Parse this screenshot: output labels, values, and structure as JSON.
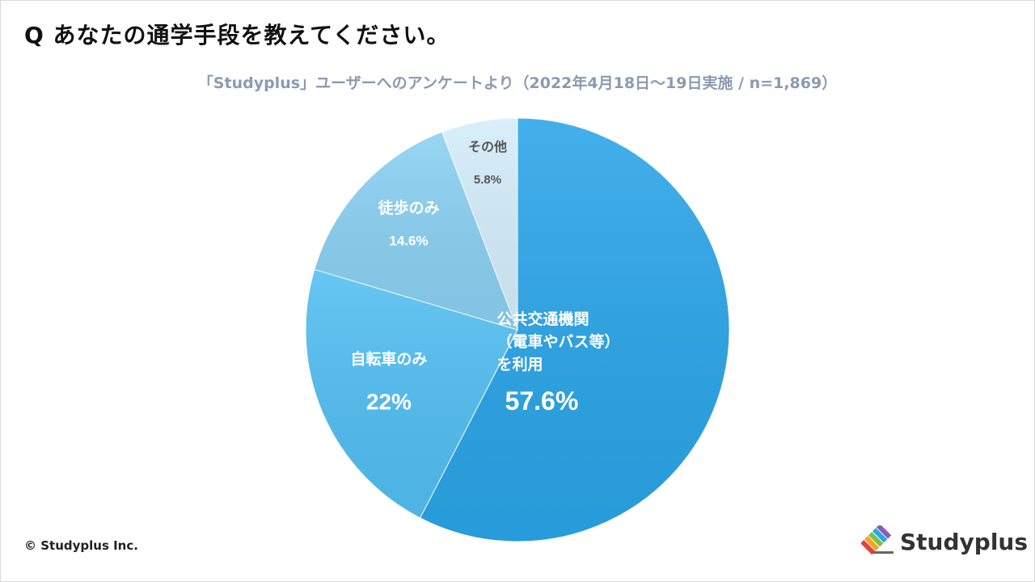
{
  "header": {
    "question": "Q あなたの通学手段を教えてください。",
    "survey_note": "「Studyplus」ユーザーへのアンケートより（2022年4月18日〜19日実施 / n=1,869）"
  },
  "chart_data": {
    "type": "pie",
    "start_angle_deg": 0,
    "direction": "clockwise",
    "unit": "%",
    "slices": [
      {
        "label_lines": [
          "公共交通機関",
          "（電車やバス等）",
          "を利用"
        ],
        "value": 57.6,
        "value_label": "57.6%",
        "color": "#2aa5e8",
        "label_color": "#ffffff"
      },
      {
        "label_lines": [
          "自転車のみ"
        ],
        "value": 22,
        "value_label": "22%",
        "color": "#52bff2",
        "label_color": "#ffffff"
      },
      {
        "label_lines": [
          "徒歩のみ"
        ],
        "value": 14.6,
        "value_label": "14.6%",
        "color": "#8ad0f2",
        "label_color": "#ffffff"
      },
      {
        "label_lines": [
          "その他"
        ],
        "value": 5.8,
        "value_label": "5.8%",
        "color": "#d4eefb",
        "label_color": "#555555"
      }
    ]
  },
  "footer": {
    "copyright": "© Studyplus Inc.",
    "brand": "Studyplus"
  }
}
